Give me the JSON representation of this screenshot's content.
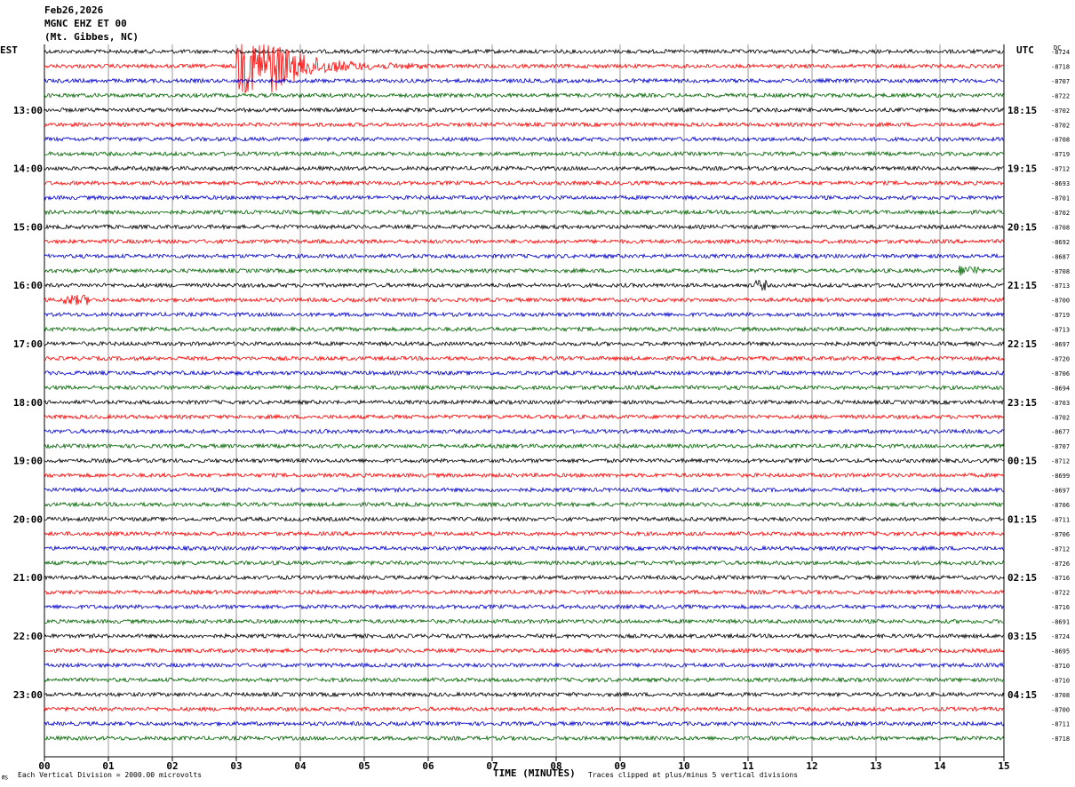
{
  "header": {
    "date": "Feb26,2026",
    "station": "MGNC EHZ ET 00",
    "location": "(Mt. Gibbes, NC)",
    "tz_left": "EST",
    "tz_right": "UTC",
    "dc_label": "DC"
  },
  "footer": {
    "scale_note": "Each Vertical Division = 2000.00 microvolts",
    "clip_note": "Traces clipped at plus/minus 5 vertical divisions",
    "logo": "㎳"
  },
  "chart_data": {
    "type": "line",
    "xlabel": "TIME (MINUTES)",
    "x_ticks": [
      "00",
      "01",
      "02",
      "03",
      "04",
      "05",
      "06",
      "07",
      "08",
      "09",
      "10",
      "11",
      "12",
      "13",
      "14",
      "15"
    ],
    "xlim": [
      0,
      15
    ],
    "trace_colors": [
      "#000000",
      "#ff0000",
      "#0000cc",
      "#006400"
    ],
    "left_hour_labels": [
      "13:00",
      "14:00",
      "15:00",
      "16:00",
      "17:00",
      "18:00",
      "19:00",
      "20:00",
      "21:00",
      "22:00",
      "23:00"
    ],
    "right_hour_labels": [
      "18:15",
      "19:15",
      "20:15",
      "21:15",
      "22:15",
      "23:15",
      "00:15",
      "01:15",
      "02:15",
      "03:15",
      "04:15"
    ],
    "dc_offsets": [
      "-8724",
      "-8718",
      "-8707",
      "-8722",
      "-8702",
      "-8702",
      "-8708",
      "-8719",
      "-8712",
      "-8693",
      "-8701",
      "-8702",
      "-8708",
      "-8692",
      "-8687",
      "-8708",
      "-8713",
      "-8700",
      "-8719",
      "-8713",
      "-8697",
      "-8720",
      "-8706",
      "-8694",
      "-8703",
      "-8702",
      "-8677",
      "-8707",
      "-8712",
      "-8699",
      "-8697",
      "-8706",
      "-8711",
      "-8706",
      "-8712",
      "-8726",
      "-8716",
      "-8722",
      "-8716",
      "-8691",
      "-8724",
      "-8695",
      "-8710",
      "-8710",
      "-8708",
      "-8700",
      "-8711",
      "-8718"
    ],
    "events": [
      {
        "trace": 1,
        "start_min": 3.0,
        "end_min": 6.0,
        "label": "earthquake"
      },
      {
        "trace": 17,
        "start_min": 0.3,
        "end_min": 0.7
      },
      {
        "trace": 16,
        "start_min": 11.1,
        "end_min": 11.3
      },
      {
        "trace": 15,
        "start_min": 14.3,
        "end_min": 14.6
      }
    ]
  }
}
